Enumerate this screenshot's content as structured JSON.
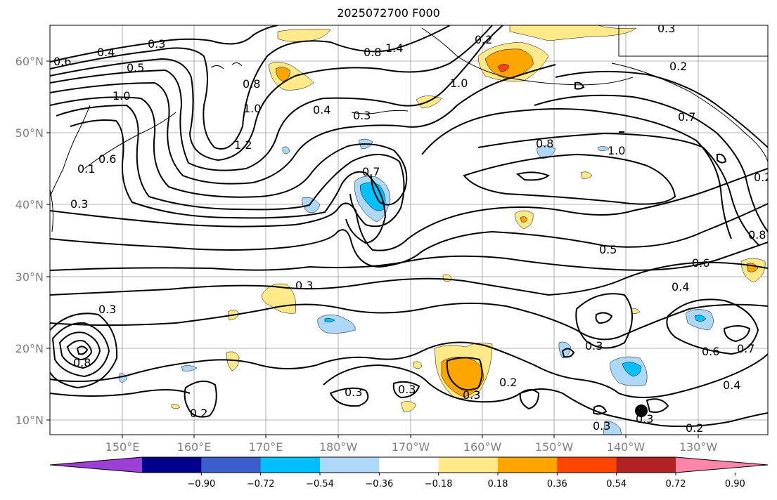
{
  "map": {
    "title": "2025072700 F000",
    "lat_labels": [
      "60°N",
      "50°N",
      "40°N",
      "30°N",
      "20°N",
      "10°N"
    ],
    "lon_labels": [
      "150°E",
      "160°E",
      "170°E",
      "180°W",
      "170°W",
      "160°W",
      "150°W",
      "140°W",
      "130°W"
    ],
    "contour_labels": [
      "0.6",
      "0.4",
      "0.3",
      "0.5",
      "1.0",
      "0.8",
      "1.2",
      "1.0",
      "0.2",
      "1.4",
      "0.8",
      "0.8",
      "1.0",
      "0.4",
      "0.3",
      "0.7",
      "1.0",
      "0.8",
      "0.5",
      "0.6",
      "0.4",
      "0.3",
      "0.3",
      "0.3",
      "0.3",
      "0.2",
      "0.3",
      "0.2",
      "0.4",
      "0.6",
      "0.7",
      "0.3",
      "0.2",
      "0.3",
      "0.3",
      "0.2",
      "0.6",
      "0.3",
      "0.1",
      "0.3",
      "0.8",
      "0.2",
      "0.7"
    ]
  },
  "colorbar": {
    "ticks": [
      "−0.90",
      "−0.72",
      "−0.54",
      "−0.36",
      "−0.18",
      "0.18",
      "0.36",
      "0.54",
      "0.72",
      "0.90"
    ],
    "colors": [
      "#9b3fd6",
      "#00008b",
      "#3a5fcd",
      "#00bfff",
      "#add8f8",
      "#ffffff",
      "#ffe989",
      "#ffa500",
      "#ff4500",
      "#b22222",
      "#ff85a9"
    ]
  }
}
